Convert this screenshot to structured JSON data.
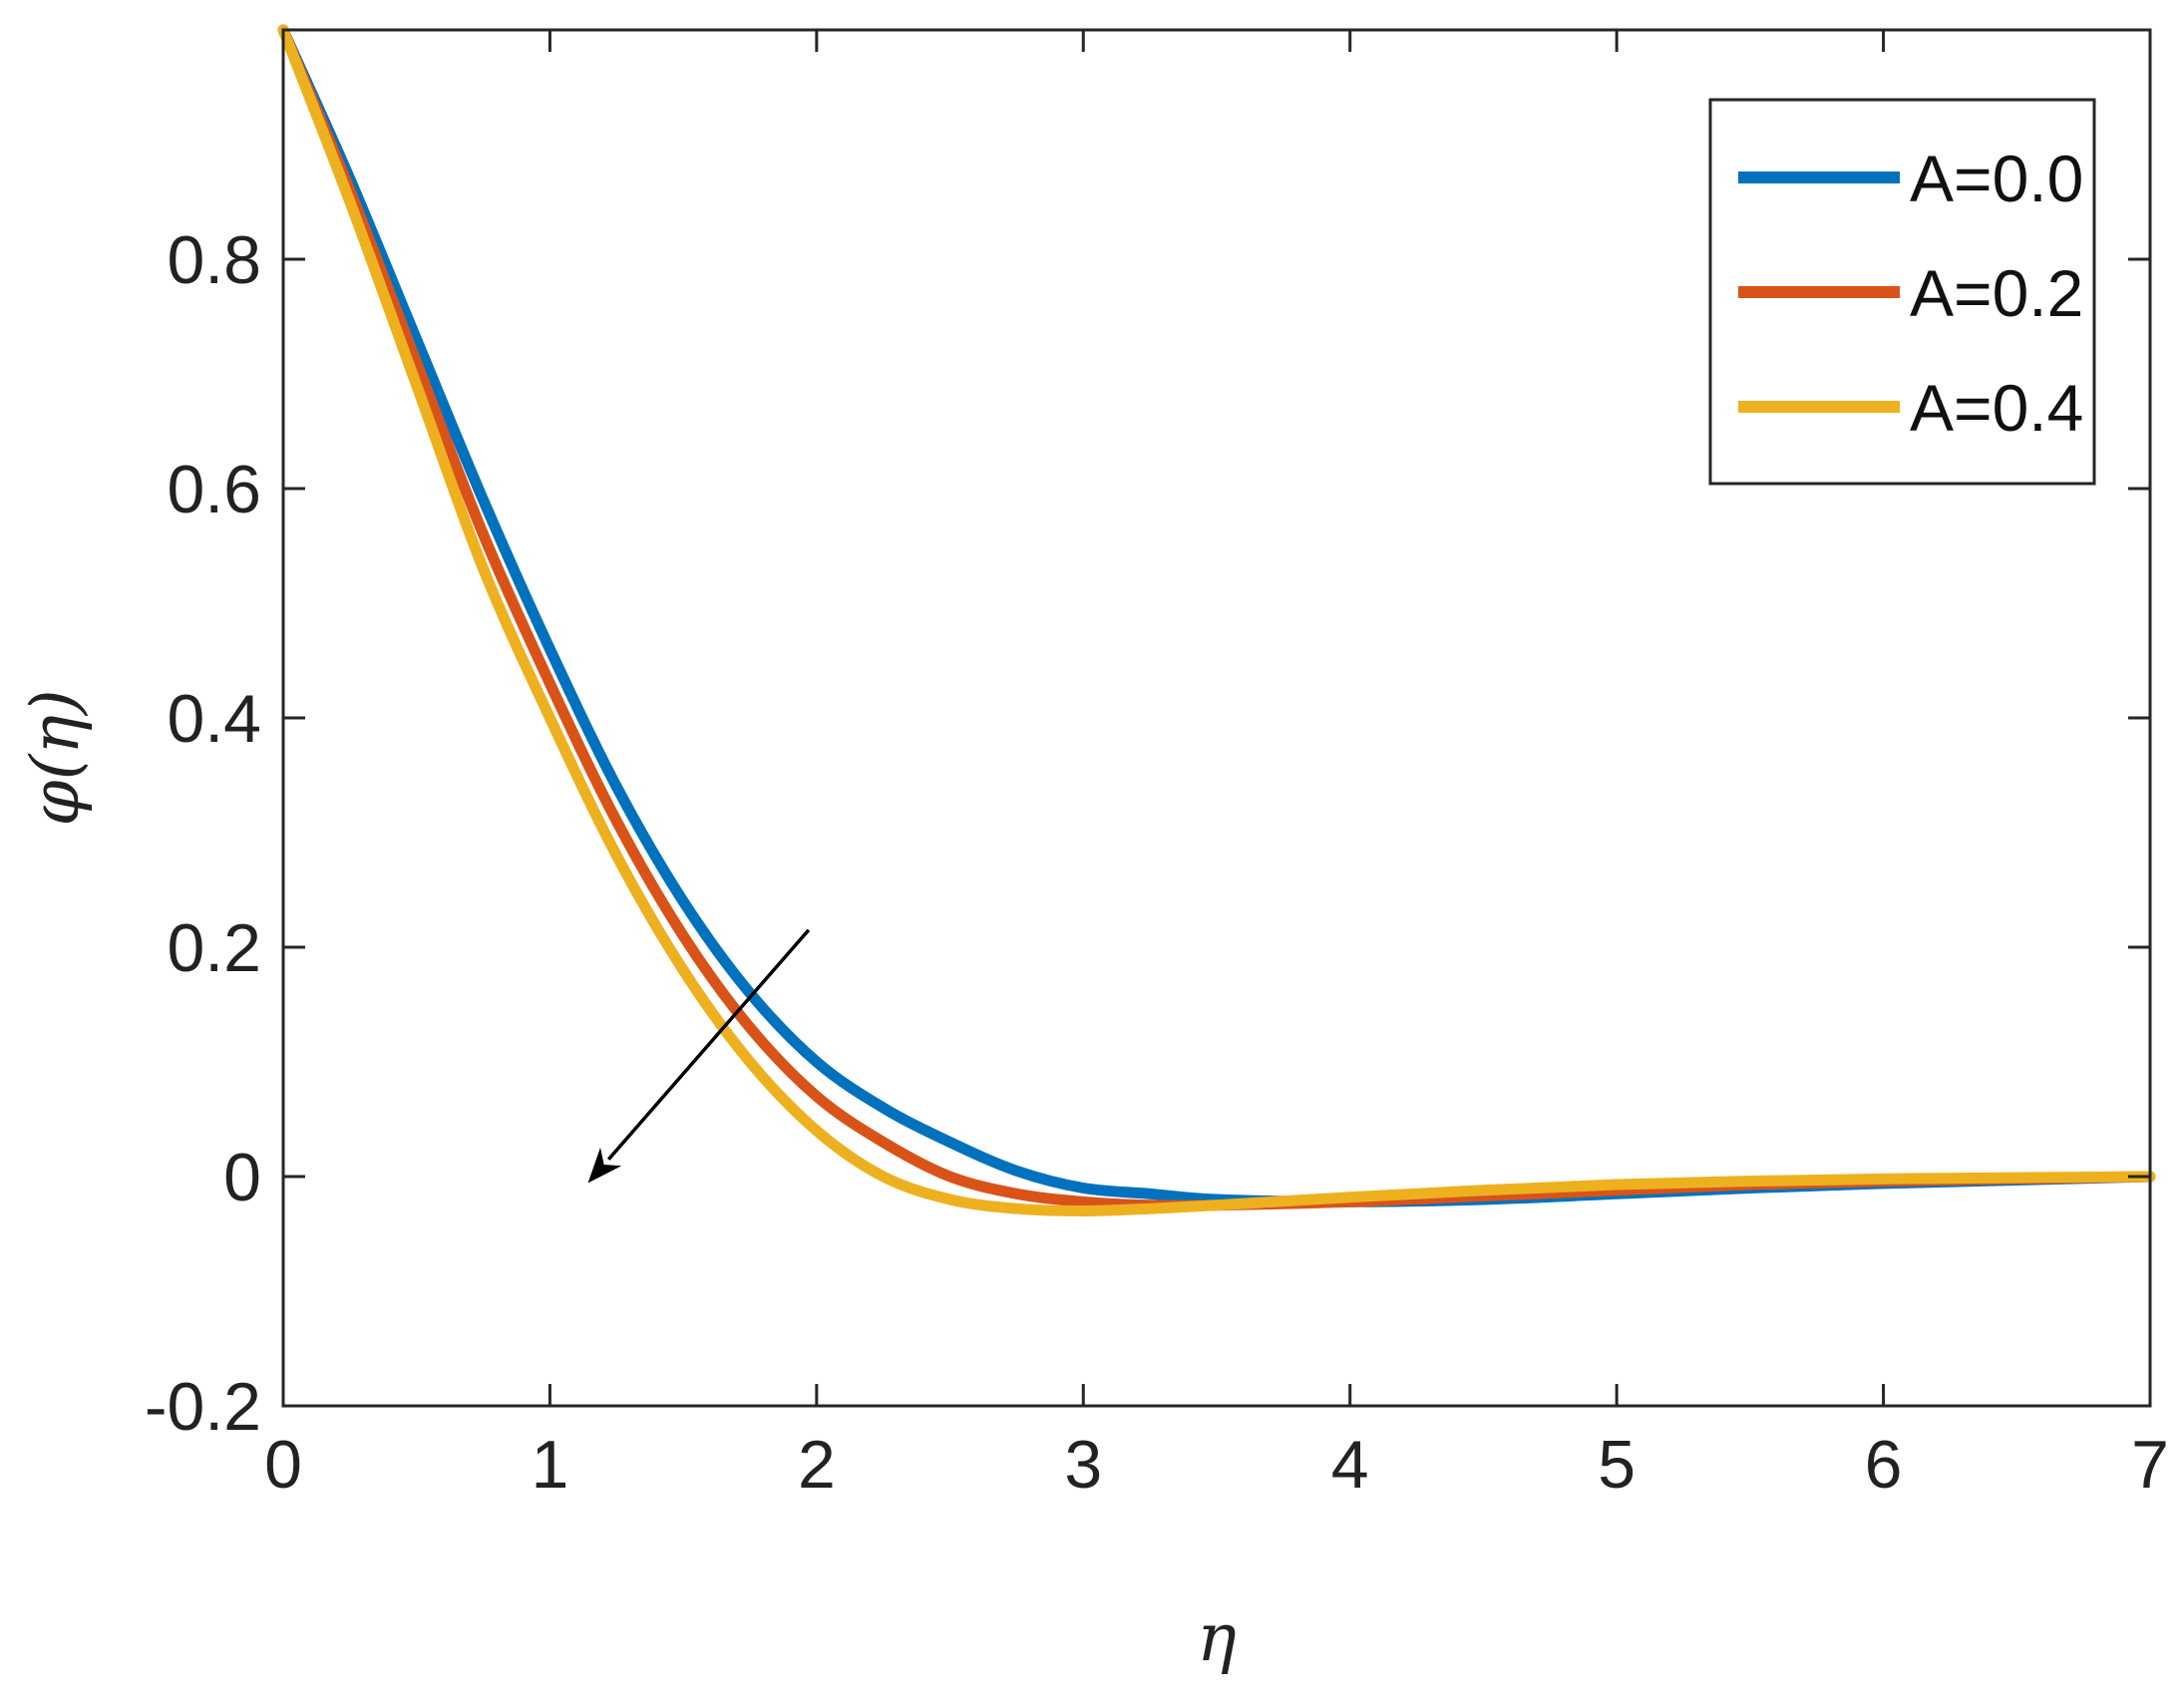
{
  "chart_data": {
    "type": "line",
    "title": "",
    "xlabel": "η",
    "ylabel": "φ(η)",
    "xlim": [
      0,
      7
    ],
    "ylim": [
      -0.2,
      1.0
    ],
    "xticks": [
      0,
      1,
      2,
      3,
      4,
      5,
      6,
      7
    ],
    "xtick_labels": [
      "0",
      "1",
      "2",
      "3",
      "4",
      "5",
      "6",
      "7"
    ],
    "yticks": [
      -0.2,
      0,
      0.2,
      0.4,
      0.6,
      0.8
    ],
    "ytick_labels": [
      "-0.2",
      "0",
      "0.2",
      "0.4",
      "0.6",
      "0.8"
    ],
    "grid": false,
    "legend_position": "top-right",
    "annotation": "arrow pointing down-left across curves",
    "series": [
      {
        "name": "A=0.0",
        "color": "#0072BD",
        "x": [
          0,
          0.25,
          0.5,
          0.75,
          1.0,
          1.25,
          1.5,
          1.75,
          2.0,
          2.25,
          2.5,
          2.75,
          3.0,
          3.25,
          3.5,
          4.0,
          4.5,
          5.0,
          5.5,
          6.0,
          6.5,
          7.0
        ],
        "y": [
          1.0,
          0.87,
          0.73,
          0.59,
          0.46,
          0.34,
          0.24,
          0.16,
          0.1,
          0.06,
          0.03,
          0.005,
          -0.01,
          -0.015,
          -0.02,
          -0.022,
          -0.02,
          -0.015,
          -0.01,
          -0.006,
          -0.003,
          0.0
        ]
      },
      {
        "name": "A=0.2",
        "color": "#D95319",
        "x": [
          0,
          0.25,
          0.5,
          0.75,
          1.0,
          1.25,
          1.5,
          1.75,
          2.0,
          2.25,
          2.5,
          2.75,
          3.0,
          3.25,
          3.5,
          4.0,
          4.5,
          5.0,
          5.5,
          6.0,
          6.5,
          7.0
        ],
        "y": [
          1.0,
          0.86,
          0.71,
          0.56,
          0.43,
          0.31,
          0.21,
          0.13,
          0.07,
          0.03,
          0.0,
          -0.015,
          -0.022,
          -0.025,
          -0.025,
          -0.022,
          -0.017,
          -0.012,
          -0.007,
          -0.004,
          -0.002,
          0.0
        ]
      },
      {
        "name": "A=0.4",
        "color": "#EDB120",
        "x": [
          0,
          0.25,
          0.5,
          0.75,
          1.0,
          1.25,
          1.5,
          1.75,
          2.0,
          2.25,
          2.5,
          2.75,
          3.0,
          3.25,
          3.5,
          4.0,
          4.5,
          5.0,
          5.5,
          6.0,
          6.5,
          7.0
        ],
        "y": [
          1.0,
          0.85,
          0.69,
          0.53,
          0.4,
          0.28,
          0.18,
          0.1,
          0.04,
          0.0,
          -0.02,
          -0.028,
          -0.03,
          -0.028,
          -0.025,
          -0.018,
          -0.012,
          -0.007,
          -0.004,
          -0.002,
          -0.001,
          0.0
        ]
      }
    ]
  }
}
